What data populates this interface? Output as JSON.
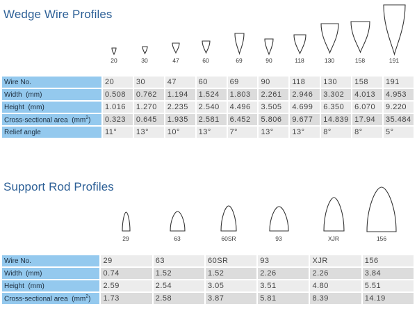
{
  "wedge": {
    "title": "Wedge Wire Profiles",
    "profiles": [
      "20",
      "30",
      "47",
      "60",
      "69",
      "90",
      "118",
      "130",
      "158",
      "191"
    ],
    "rows": [
      {
        "label": "Wire No.",
        "values": [
          "20",
          "30",
          "47",
          "60",
          "69",
          "90",
          "118",
          "130",
          "158",
          "191"
        ]
      },
      {
        "label": "Width  (mm)",
        "values": [
          "0.508",
          "0.762",
          "1.194",
          "1.524",
          "1.803",
          "2.261",
          "2.946",
          "3.302",
          "4.013",
          "4.953"
        ]
      },
      {
        "label": "Height  (mm)",
        "values": [
          "1.016",
          "1.270",
          "2.235",
          "2.540",
          "4.496",
          "3.505",
          "4.699",
          "6.350",
          "6.070",
          "9.220"
        ]
      },
      {
        "label": "Cross-sectional area  (mm",
        "label_sup": "2",
        "label_end": ")",
        "values": [
          "0.323",
          "0.645",
          "1.935",
          "2.581",
          "6.452",
          "5.806",
          "9.677",
          "14.839",
          "17.94",
          "35.484"
        ]
      },
      {
        "label": "Relief angle",
        "values": [
          "11°",
          "13°",
          "10°",
          "13°",
          "7°",
          "13°",
          "13°",
          "8°",
          "8°",
          "5°"
        ]
      }
    ]
  },
  "support": {
    "title": "Support Rod Profiles",
    "profiles": [
      "29",
      "63",
      "60SR",
      "93",
      "XJR",
      "156"
    ],
    "rows": [
      {
        "label": "Wire No.",
        "values": [
          "29",
          "63",
          "60SR",
          "93",
          "XJR",
          "156"
        ]
      },
      {
        "label": "Width  (mm)",
        "values": [
          "0.74",
          "1.52",
          "1.52",
          "2.26",
          "2.26",
          "3.84"
        ]
      },
      {
        "label": "Height  (mm)",
        "values": [
          "2.59",
          "2.54",
          "3.05",
          "3.51",
          "4.80",
          "5.51"
        ]
      },
      {
        "label": "Cross-sectional area  (mm",
        "label_sup": "2",
        "label_end": ")",
        "values": [
          "1.73",
          "2.58",
          "3.87",
          "5.81",
          "8.39",
          "14.19"
        ]
      }
    ]
  }
}
